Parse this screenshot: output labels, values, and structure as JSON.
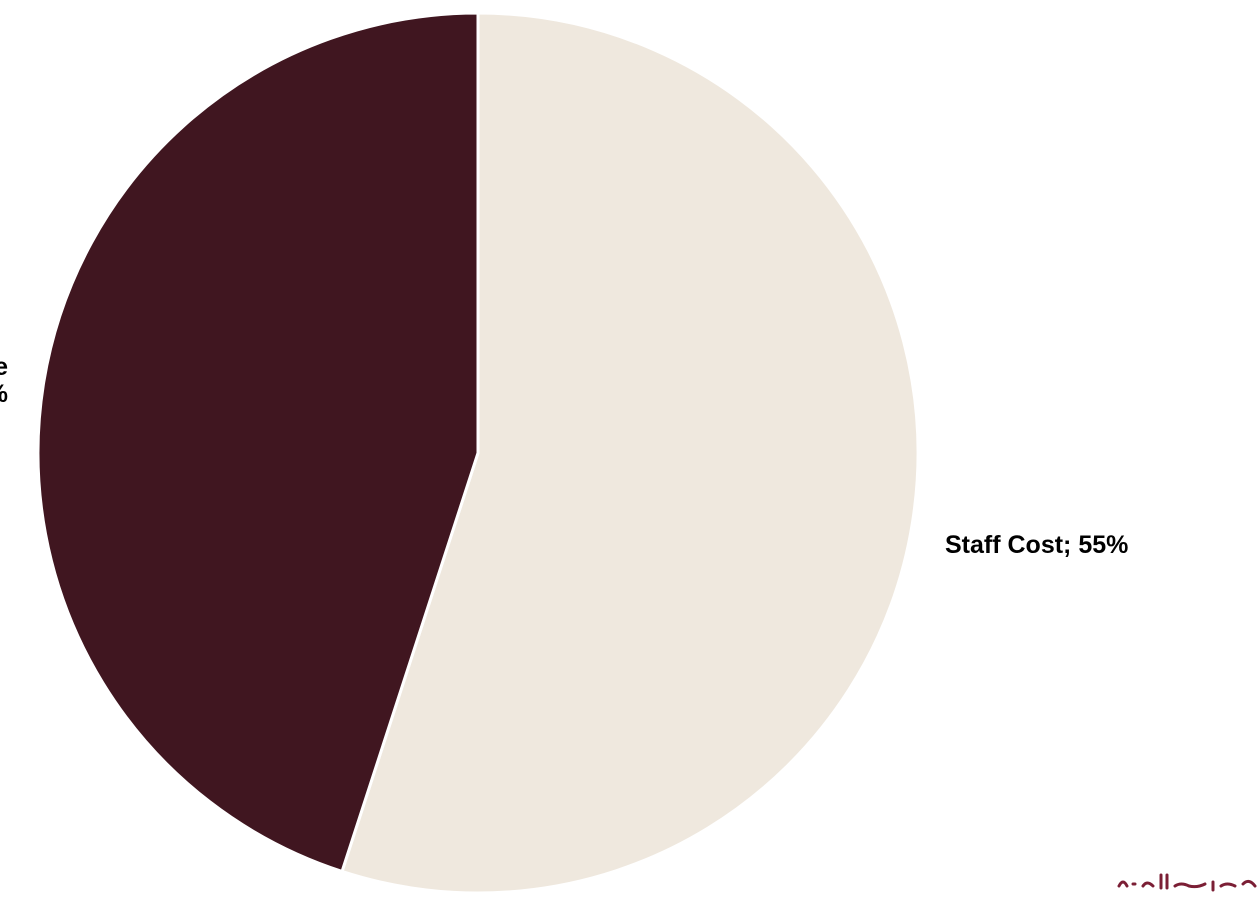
{
  "chart_data": {
    "type": "pie",
    "slices": [
      {
        "label": "Staff Cost; 55%",
        "value": 55,
        "color": "#EFE8DE"
      },
      {
        "label": "e\n%",
        "value": 45,
        "color": "#401620"
      }
    ],
    "start_angle_deg": 0,
    "direction": "clockwise",
    "slice_separator_color": "#FFFFFF"
  },
  "logo": {
    "name": "arabic-wordmark-logo",
    "color": "#7B1F35"
  }
}
